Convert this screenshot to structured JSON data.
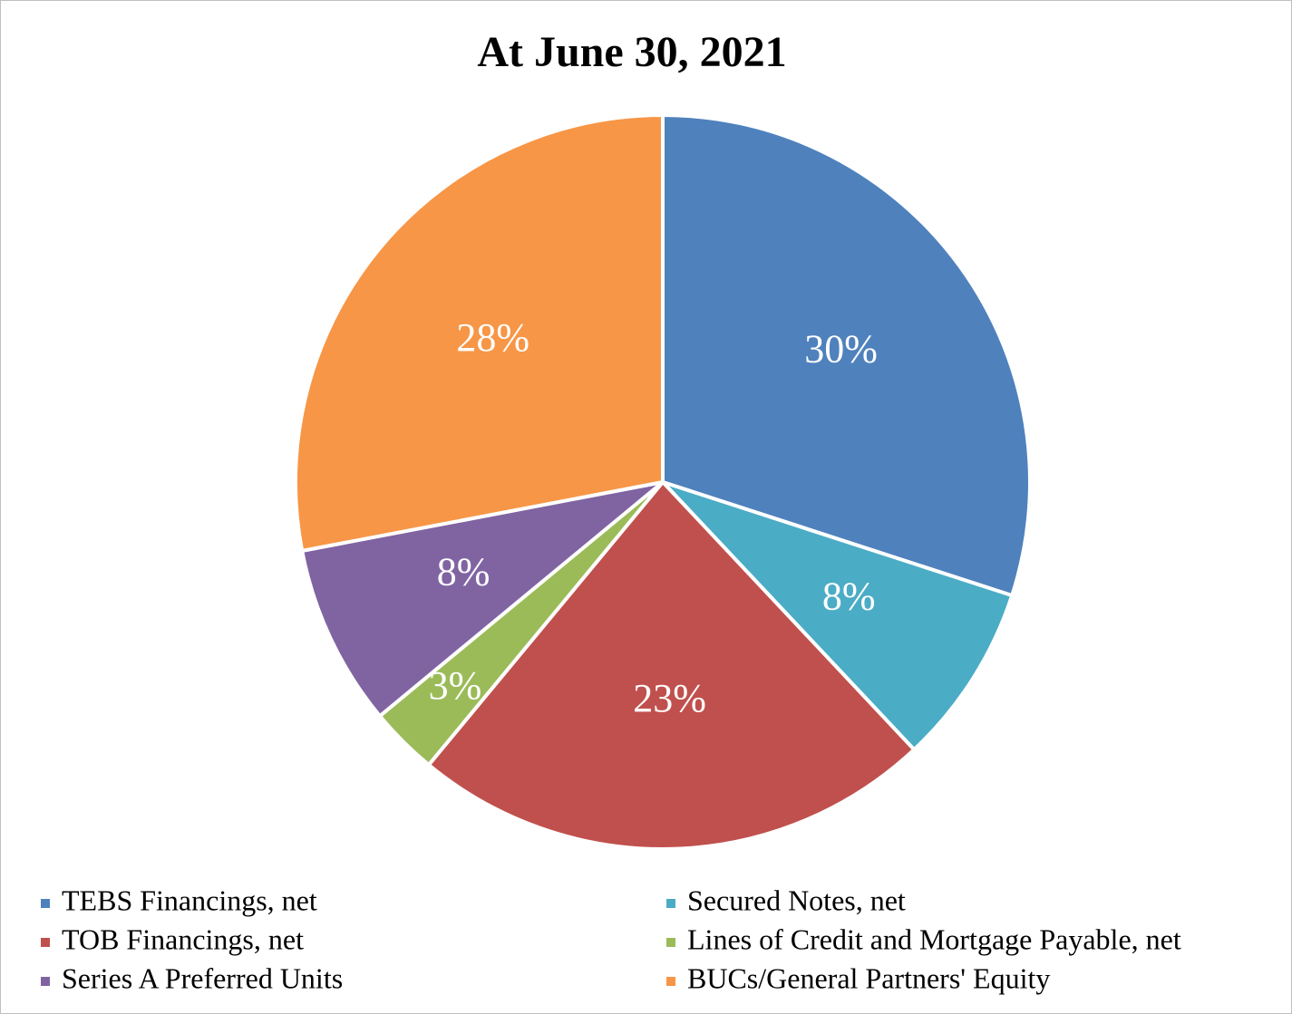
{
  "chart_data": {
    "type": "pie",
    "title": "At June 30, 2021",
    "categories": [
      "TEBS Financings, net",
      "Secured Notes, net",
      "TOB Financings, net",
      "Lines of Credit and Mortgage Payable, net",
      "Series A Preferred Units",
      "BUCs/General Partners' Equity"
    ],
    "values": [
      30,
      8,
      23,
      3,
      8,
      28
    ],
    "value_labels": [
      "30%",
      "8%",
      "23%",
      "3%",
      "8%",
      "28%"
    ],
    "colors": [
      "#4f81bd",
      "#4bacc6",
      "#c0504d",
      "#9bbb59",
      "#8064a2",
      "#f79646"
    ],
    "legend": "bottom"
  }
}
